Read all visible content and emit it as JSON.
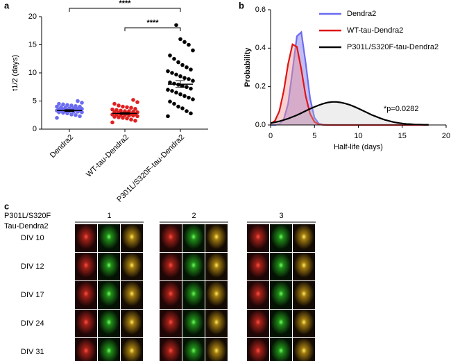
{
  "panel_labels": [
    "a",
    "b",
    "c"
  ],
  "chart_data": [
    {
      "type": "dot-plot",
      "ylabel": "t1/2 (days)",
      "categories": [
        "Dendra2",
        "WT-tau-Dendra2",
        "P301L/S320F-tau-Dendra2"
      ],
      "colors": [
        "#6b6bf0",
        "#e02020",
        "#000000"
      ],
      "groups": [
        [
          2.0,
          2.3,
          2.5,
          2.6,
          2.8,
          2.9,
          3.0,
          3.0,
          3.1,
          3.1,
          3.2,
          3.2,
          3.3,
          3.3,
          3.3,
          3.4,
          3.4,
          3.5,
          3.5,
          3.5,
          3.6,
          3.6,
          3.7,
          3.7,
          3.8,
          3.9,
          4.0,
          4.0,
          4.1,
          4.2,
          4.3,
          4.4,
          4.5,
          4.7,
          5.0
        ],
        [
          1.2,
          1.5,
          1.7,
          1.9,
          2.0,
          2.1,
          2.2,
          2.3,
          2.4,
          2.4,
          2.5,
          2.5,
          2.6,
          2.6,
          2.7,
          2.7,
          2.8,
          2.8,
          2.9,
          3.0,
          3.0,
          3.1,
          3.2,
          3.2,
          3.3,
          3.4,
          3.5,
          3.6,
          3.8,
          3.9,
          4.0,
          4.2,
          4.5,
          4.8,
          5.2
        ],
        [
          2.3,
          2.8,
          3.2,
          3.7,
          4.0,
          4.5,
          4.9,
          5.3,
          5.6,
          5.9,
          6.2,
          6.5,
          6.8,
          7.0,
          7.2,
          7.5,
          7.7,
          7.9,
          8.1,
          8.3,
          8.6,
          8.9,
          9.1,
          9.4,
          9.7,
          10.0,
          10.3,
          10.6,
          11.0,
          11.4,
          11.9,
          12.5,
          13.1,
          14.0,
          15.0,
          15.5,
          16.0,
          18.5
        ]
      ],
      "means": [
        3.3,
        2.8,
        8.0
      ],
      "sems": [
        0.15,
        0.15,
        0.6
      ],
      "significance": [
        "****",
        "****"
      ],
      "ylim": [
        0,
        20
      ],
      "yticks": [
        0,
        5,
        10,
        15,
        20
      ]
    },
    {
      "type": "line",
      "xlabel": "Half-life (days)",
      "ylabel": "Probability",
      "x": [
        0,
        0.5,
        1,
        1.5,
        2,
        2.5,
        3,
        3.5,
        4,
        4.5,
        5,
        5.5,
        6,
        6.5,
        7,
        7.5,
        8,
        8.5,
        9,
        9.5,
        10,
        10.5,
        11,
        11.5,
        12,
        12.5,
        13,
        13.5,
        14,
        14.5,
        15,
        15.5,
        16,
        16.5,
        17,
        17.5,
        18
      ],
      "series": [
        {
          "name": "Dendra2",
          "color": "#6b6bf0",
          "fill": "rgba(120,110,230,0.45)",
          "values": [
            0,
            0,
            0.005,
            0.028,
            0.111,
            0.283,
            0.462,
            0.483,
            0.323,
            0.139,
            0.038,
            0.007,
            0.001,
            0,
            0,
            0,
            0,
            0,
            0,
            0,
            0,
            0,
            0,
            0,
            0,
            0,
            0,
            0,
            0,
            0,
            0,
            0,
            0,
            0,
            0,
            0,
            0
          ]
        },
        {
          "name": "WT-tau-Dendra2",
          "color": "#e01515",
          "fill": "rgba(240,150,150,0.45)",
          "values": [
            0.005,
            0.022,
            0.072,
            0.177,
            0.318,
            0.42,
            0.407,
            0.29,
            0.151,
            0.058,
            0.016,
            0.003,
            0.001,
            0,
            0,
            0,
            0,
            0,
            0,
            0,
            0,
            0,
            0,
            0,
            0,
            0,
            0,
            0,
            0,
            0,
            0,
            0,
            0,
            0,
            0,
            0,
            0
          ]
        },
        {
          "name": "P301L/S320F-tau-Dendra2",
          "color": "#000000",
          "fill": "rgba(200,200,200,0.3)",
          "values": [
            0.01,
            0.014,
            0.019,
            0.026,
            0.033,
            0.042,
            0.051,
            0.062,
            0.073,
            0.084,
            0.094,
            0.103,
            0.111,
            0.117,
            0.12,
            0.12,
            0.117,
            0.112,
            0.105,
            0.096,
            0.086,
            0.075,
            0.064,
            0.053,
            0.044,
            0.035,
            0.027,
            0.021,
            0.015,
            0.011,
            0.008,
            0.005,
            0.004,
            0.002,
            0.002,
            0.001,
            0.001
          ]
        }
      ],
      "annotation": "*p=0.0282",
      "legend": "top-right",
      "xlim": [
        0,
        20
      ],
      "xticks": [
        0,
        5,
        10,
        15,
        20
      ],
      "ylim": [
        0,
        0.6
      ],
      "yticks": [
        {
          "value": 0,
          "label": "0.0"
        },
        {
          "value": 0.2,
          "label": "0.2"
        },
        {
          "value": 0.4,
          "label": "0.4"
        },
        {
          "value": 0.6,
          "label": "0.6"
        }
      ]
    }
  ],
  "image_panel": {
    "title": [
      "P301L/S320F",
      "Tau-Dendra2"
    ],
    "neurons": [
      "1",
      "2",
      "3"
    ],
    "rows": [
      "DIV 10",
      "DIV 12",
      "DIV 17",
      "DIV 24",
      "DIV 31"
    ]
  }
}
